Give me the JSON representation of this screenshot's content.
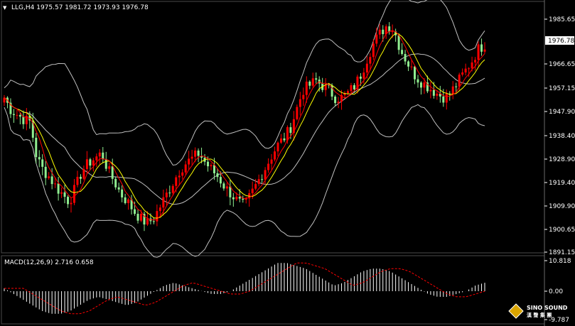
{
  "header": {
    "arrow": "▼",
    "title": "LLG,H4  1975.57 1981.72 1973.93 1976.78"
  },
  "macd_label": "MACD(12,26,9) 2.716 0.658",
  "price_axis": {
    "ticks": [
      "1985.65",
      "1966.65",
      "1957.15",
      "1947.90",
      "1938.40",
      "1928.90",
      "1919.40",
      "1909.90",
      "1900.65",
      "1891.15"
    ],
    "current": "1976.78"
  },
  "macd_axis": {
    "ticks": [
      "10.818",
      "0.00",
      "-9.787"
    ]
  },
  "logo": {
    "name": "SINO SOUND",
    "sub": "漢 聲 集 團"
  },
  "colors": {
    "background": "#000000",
    "bull": "#ff0000",
    "bear": "#90ee90",
    "ma": "#ffff00",
    "band": "#c0c0c0",
    "histogram": "#ffffff",
    "signal": "#ff0000"
  },
  "chart_data": {
    "type": "candlestick",
    "price_range": [
      1891.15,
      1990.0
    ],
    "close_path": [
      1955,
      1950,
      1948,
      1946,
      1945,
      1930,
      1925,
      1922,
      1918,
      1915,
      1912,
      1918,
      1925,
      1928,
      1930,
      1932,
      1925,
      1920,
      1915,
      1912,
      1908,
      1905,
      1903,
      1905,
      1910,
      1915,
      1920,
      1925,
      1928,
      1930,
      1932,
      1928,
      1925,
      1922,
      1918,
      1915,
      1912,
      1910,
      1915,
      1920,
      1925,
      1930,
      1935,
      1938,
      1942,
      1950,
      1958,
      1960,
      1962,
      1960,
      1958,
      1955,
      1955,
      1957,
      1960,
      1965,
      1972,
      1978,
      1982,
      1985,
      1983,
      1975,
      1970,
      1965,
      1962,
      1960,
      1958,
      1956,
      1955,
      1958,
      1962,
      1966,
      1970,
      1975,
      1977
    ],
    "macd": {
      "label": "MACD(12,26,9)",
      "main": 2.716,
      "signal": 0.658,
      "range": [
        -9.787,
        10.818
      ],
      "histogram_path": [
        1,
        -1,
        -3,
        -5,
        -7,
        -8,
        -8,
        -7,
        -5,
        -3,
        -2,
        -3,
        -4,
        -5,
        -4,
        -2,
        0,
        2,
        3,
        2,
        1,
        0,
        -1,
        -1,
        0,
        2,
        4,
        6,
        8,
        10,
        10,
        9,
        8,
        6,
        4,
        2,
        3,
        5,
        7,
        8,
        8,
        7,
        5,
        3,
        1,
        -1,
        -2,
        -2,
        -1,
        0,
        2,
        3
      ]
    }
  }
}
